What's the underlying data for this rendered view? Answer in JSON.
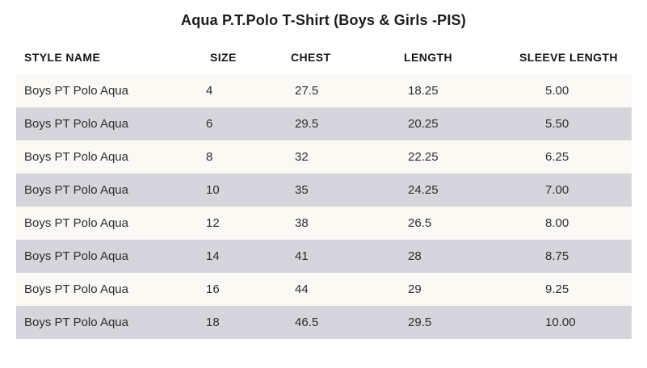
{
  "chart_data": {
    "type": "table",
    "title": "Aqua P.T.Polo T-Shirt (Boys & Girls -PIS)",
    "columns": [
      "STYLE NAME",
      "SIZE",
      "CHEST",
      "LENGTH",
      "SLEEVE LENGTH"
    ],
    "rows": [
      [
        "Boys PT Polo Aqua",
        "4",
        "27.5",
        "18.25",
        "5.00"
      ],
      [
        "Boys PT Polo Aqua",
        "6",
        "29.5",
        "20.25",
        "5.50"
      ],
      [
        "Boys PT Polo Aqua",
        "8",
        "32",
        "22.25",
        "6.25"
      ],
      [
        "Boys PT Polo Aqua",
        "10",
        "35",
        "24.25",
        "7.00"
      ],
      [
        "Boys PT Polo Aqua",
        "12",
        "38",
        "26.5",
        "8.00"
      ],
      [
        "Boys PT Polo Aqua",
        "14",
        "41",
        "28",
        "8.75"
      ],
      [
        "Boys PT Polo Aqua",
        "16",
        "44",
        "29",
        "9.25"
      ],
      [
        "Boys PT Polo Aqua",
        "18",
        "46.5",
        "29.5",
        "10.00"
      ]
    ],
    "layout": {
      "row_alternation": "light,dark",
      "grid": "off",
      "header_position": "top"
    }
  },
  "colors": {
    "row_light": "#faf9f3",
    "row_dark": "#d6d5dc",
    "header_background": "#ffffff",
    "title_text": "#1c1c1c",
    "cell_text": "#2e2e2e"
  }
}
